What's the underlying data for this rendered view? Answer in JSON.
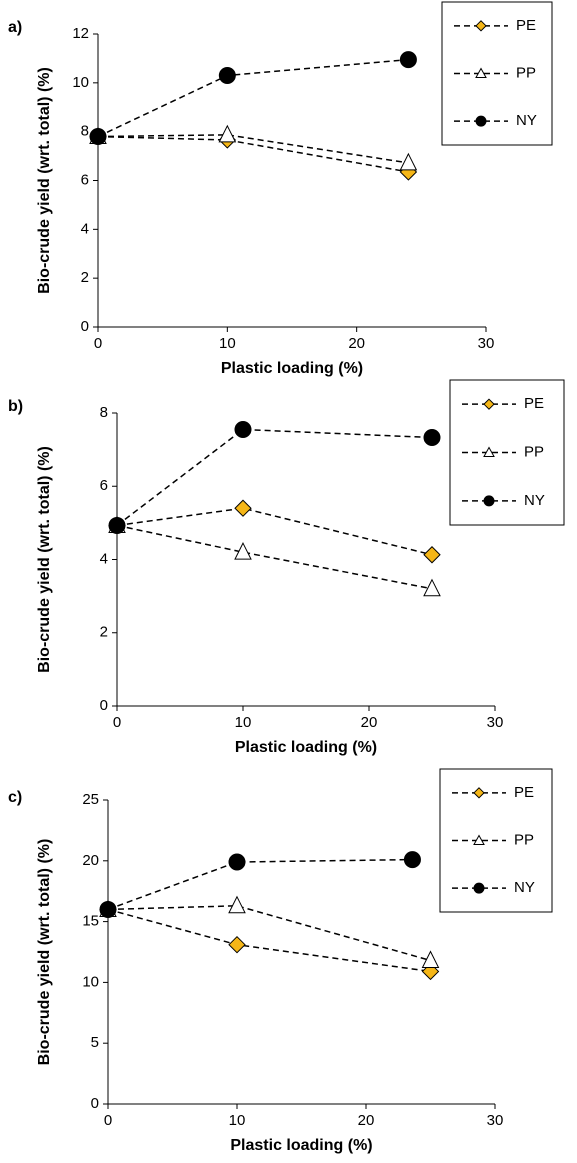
{
  "chart_data": [
    {
      "type": "line",
      "panel_label": "a)",
      "xlabel": "Plastic loading (%)",
      "ylabel": "Bio-crude yield (wrt. total) (%)",
      "xlim": [
        0,
        30
      ],
      "xticks": [
        0,
        10,
        20,
        30
      ],
      "ylim": [
        0,
        12
      ],
      "yticks": [
        0,
        2,
        4,
        6,
        8,
        10,
        12
      ],
      "series": [
        {
          "name": "PE",
          "color": "#f5b617",
          "marker": "diamond",
          "x": [
            0,
            10,
            24
          ],
          "values": [
            7.8,
            7.66,
            6.35
          ]
        },
        {
          "name": "PP",
          "color": "#ffffff",
          "marker": "triangle",
          "x": [
            0,
            10,
            24
          ],
          "values": [
            7.8,
            7.87,
            6.72
          ]
        },
        {
          "name": "NY",
          "color": "#000000",
          "marker": "circle",
          "x": [
            0,
            10,
            24
          ],
          "values": [
            7.8,
            10.3,
            10.95
          ]
        }
      ]
    },
    {
      "type": "line",
      "panel_label": "b)",
      "xlabel": "Plastic loading (%)",
      "ylabel": "Bio-crude yield (wrt. total) (%)",
      "xlim": [
        0,
        30
      ],
      "xticks": [
        0,
        10,
        20,
        30
      ],
      "ylim": [
        0,
        8
      ],
      "yticks": [
        0,
        2,
        4,
        6,
        8
      ],
      "series": [
        {
          "name": "PE",
          "color": "#f5b617",
          "marker": "diamond",
          "x": [
            0,
            10,
            25
          ],
          "values": [
            4.93,
            5.4,
            4.13
          ]
        },
        {
          "name": "PP",
          "color": "#ffffff",
          "marker": "triangle",
          "x": [
            0,
            10,
            25
          ],
          "values": [
            4.93,
            4.2,
            3.2
          ]
        },
        {
          "name": "NY",
          "color": "#000000",
          "marker": "circle",
          "x": [
            0,
            10,
            25
          ],
          "values": [
            4.93,
            7.55,
            7.33
          ]
        }
      ]
    },
    {
      "type": "line",
      "panel_label": "c)",
      "xlabel": "Plastic loading (%)",
      "ylabel": "Bio-crude yield (wrt. total) (%)",
      "xlim": [
        0,
        30
      ],
      "xticks": [
        0,
        10,
        20,
        30
      ],
      "ylim": [
        0,
        25
      ],
      "yticks": [
        0,
        5,
        10,
        15,
        20,
        25
      ],
      "series": [
        {
          "name": "PE",
          "color": "#f5b617",
          "marker": "diamond",
          "x": [
            0,
            10,
            25
          ],
          "values": [
            16,
            13.1,
            10.9
          ]
        },
        {
          "name": "PP",
          "color": "#ffffff",
          "marker": "triangle",
          "x": [
            0,
            10,
            25
          ],
          "values": [
            16,
            16.3,
            11.8
          ]
        },
        {
          "name": "NY",
          "color": "#000000",
          "marker": "circle",
          "x": [
            0,
            10,
            23.6
          ],
          "values": [
            16,
            19.9,
            20.1
          ]
        }
      ]
    }
  ]
}
